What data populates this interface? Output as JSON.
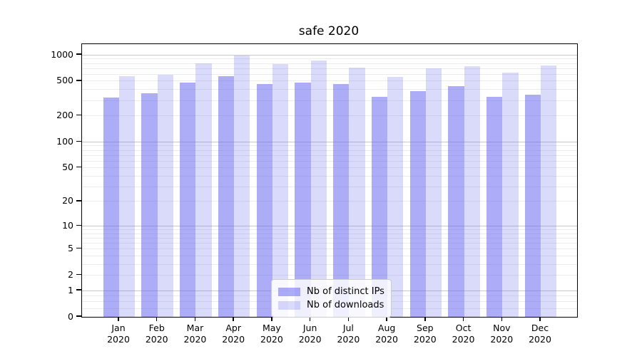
{
  "title": "safe 2020",
  "colors": {
    "bar_base": "106,106,240",
    "series_dark": "rgba(106,106,240,0.55)",
    "series_light": "rgba(106,106,240,0.25)",
    "grid_minor": "#ebebeb",
    "grid_major": "#c8c8c8",
    "frame": "#000000",
    "legend_border": "#cccccc"
  },
  "yaxis": {
    "tick_labels": [
      "0",
      "1",
      "2",
      "5",
      "10",
      "20",
      "50",
      "100",
      "200",
      "500",
      "1000"
    ],
    "tick_values": [
      0,
      1,
      2,
      5,
      10,
      20,
      50,
      100,
      200,
      500,
      1000
    ]
  },
  "xaxis": {
    "year": "2020",
    "months": [
      "Jan",
      "Feb",
      "Mar",
      "Apr",
      "May",
      "Jun",
      "Jul",
      "Aug",
      "Sep",
      "Oct",
      "Nov",
      "Dec"
    ]
  },
  "legend": {
    "items": [
      {
        "label": "Nb of distinct IPs",
        "swatch": "dark-swatch"
      },
      {
        "label": "Nb of downloads",
        "swatch": "light-swatch"
      }
    ]
  },
  "chart_data": {
    "type": "bar",
    "title": "safe 2020",
    "categories": [
      "Jan 2020",
      "Feb 2020",
      "Mar 2020",
      "Apr 2020",
      "May 2020",
      "Jun 2020",
      "Jul 2020",
      "Aug 2020",
      "Sep 2020",
      "Oct 2020",
      "Nov 2020",
      "Dec 2020"
    ],
    "series": [
      {
        "name": "Nb of distinct IPs",
        "values": [
          325,
          360,
          480,
          570,
          465,
          480,
          460,
          330,
          385,
          435,
          330,
          350
        ]
      },
      {
        "name": "Nb of downloads",
        "values": [
          570,
          595,
          805,
          985,
          785,
          860,
          720,
          560,
          705,
          745,
          630,
          760
        ]
      }
    ],
    "yscale": "log10(1+v)",
    "ylim": [
      0,
      1330
    ],
    "yticks": [
      0,
      1,
      2,
      5,
      10,
      20,
      50,
      100,
      200,
      500,
      1000
    ],
    "grid": true,
    "grid_major_values": [
      1,
      10,
      100,
      1000
    ],
    "grid_minor_values": [
      0.25,
      0.5,
      0.75,
      2,
      3,
      4,
      5,
      6,
      7,
      8,
      9,
      20,
      30,
      40,
      50,
      60,
      70,
      80,
      90,
      200,
      300,
      400,
      500,
      600,
      700,
      800,
      900
    ],
    "legend_position": "lower-center"
  }
}
